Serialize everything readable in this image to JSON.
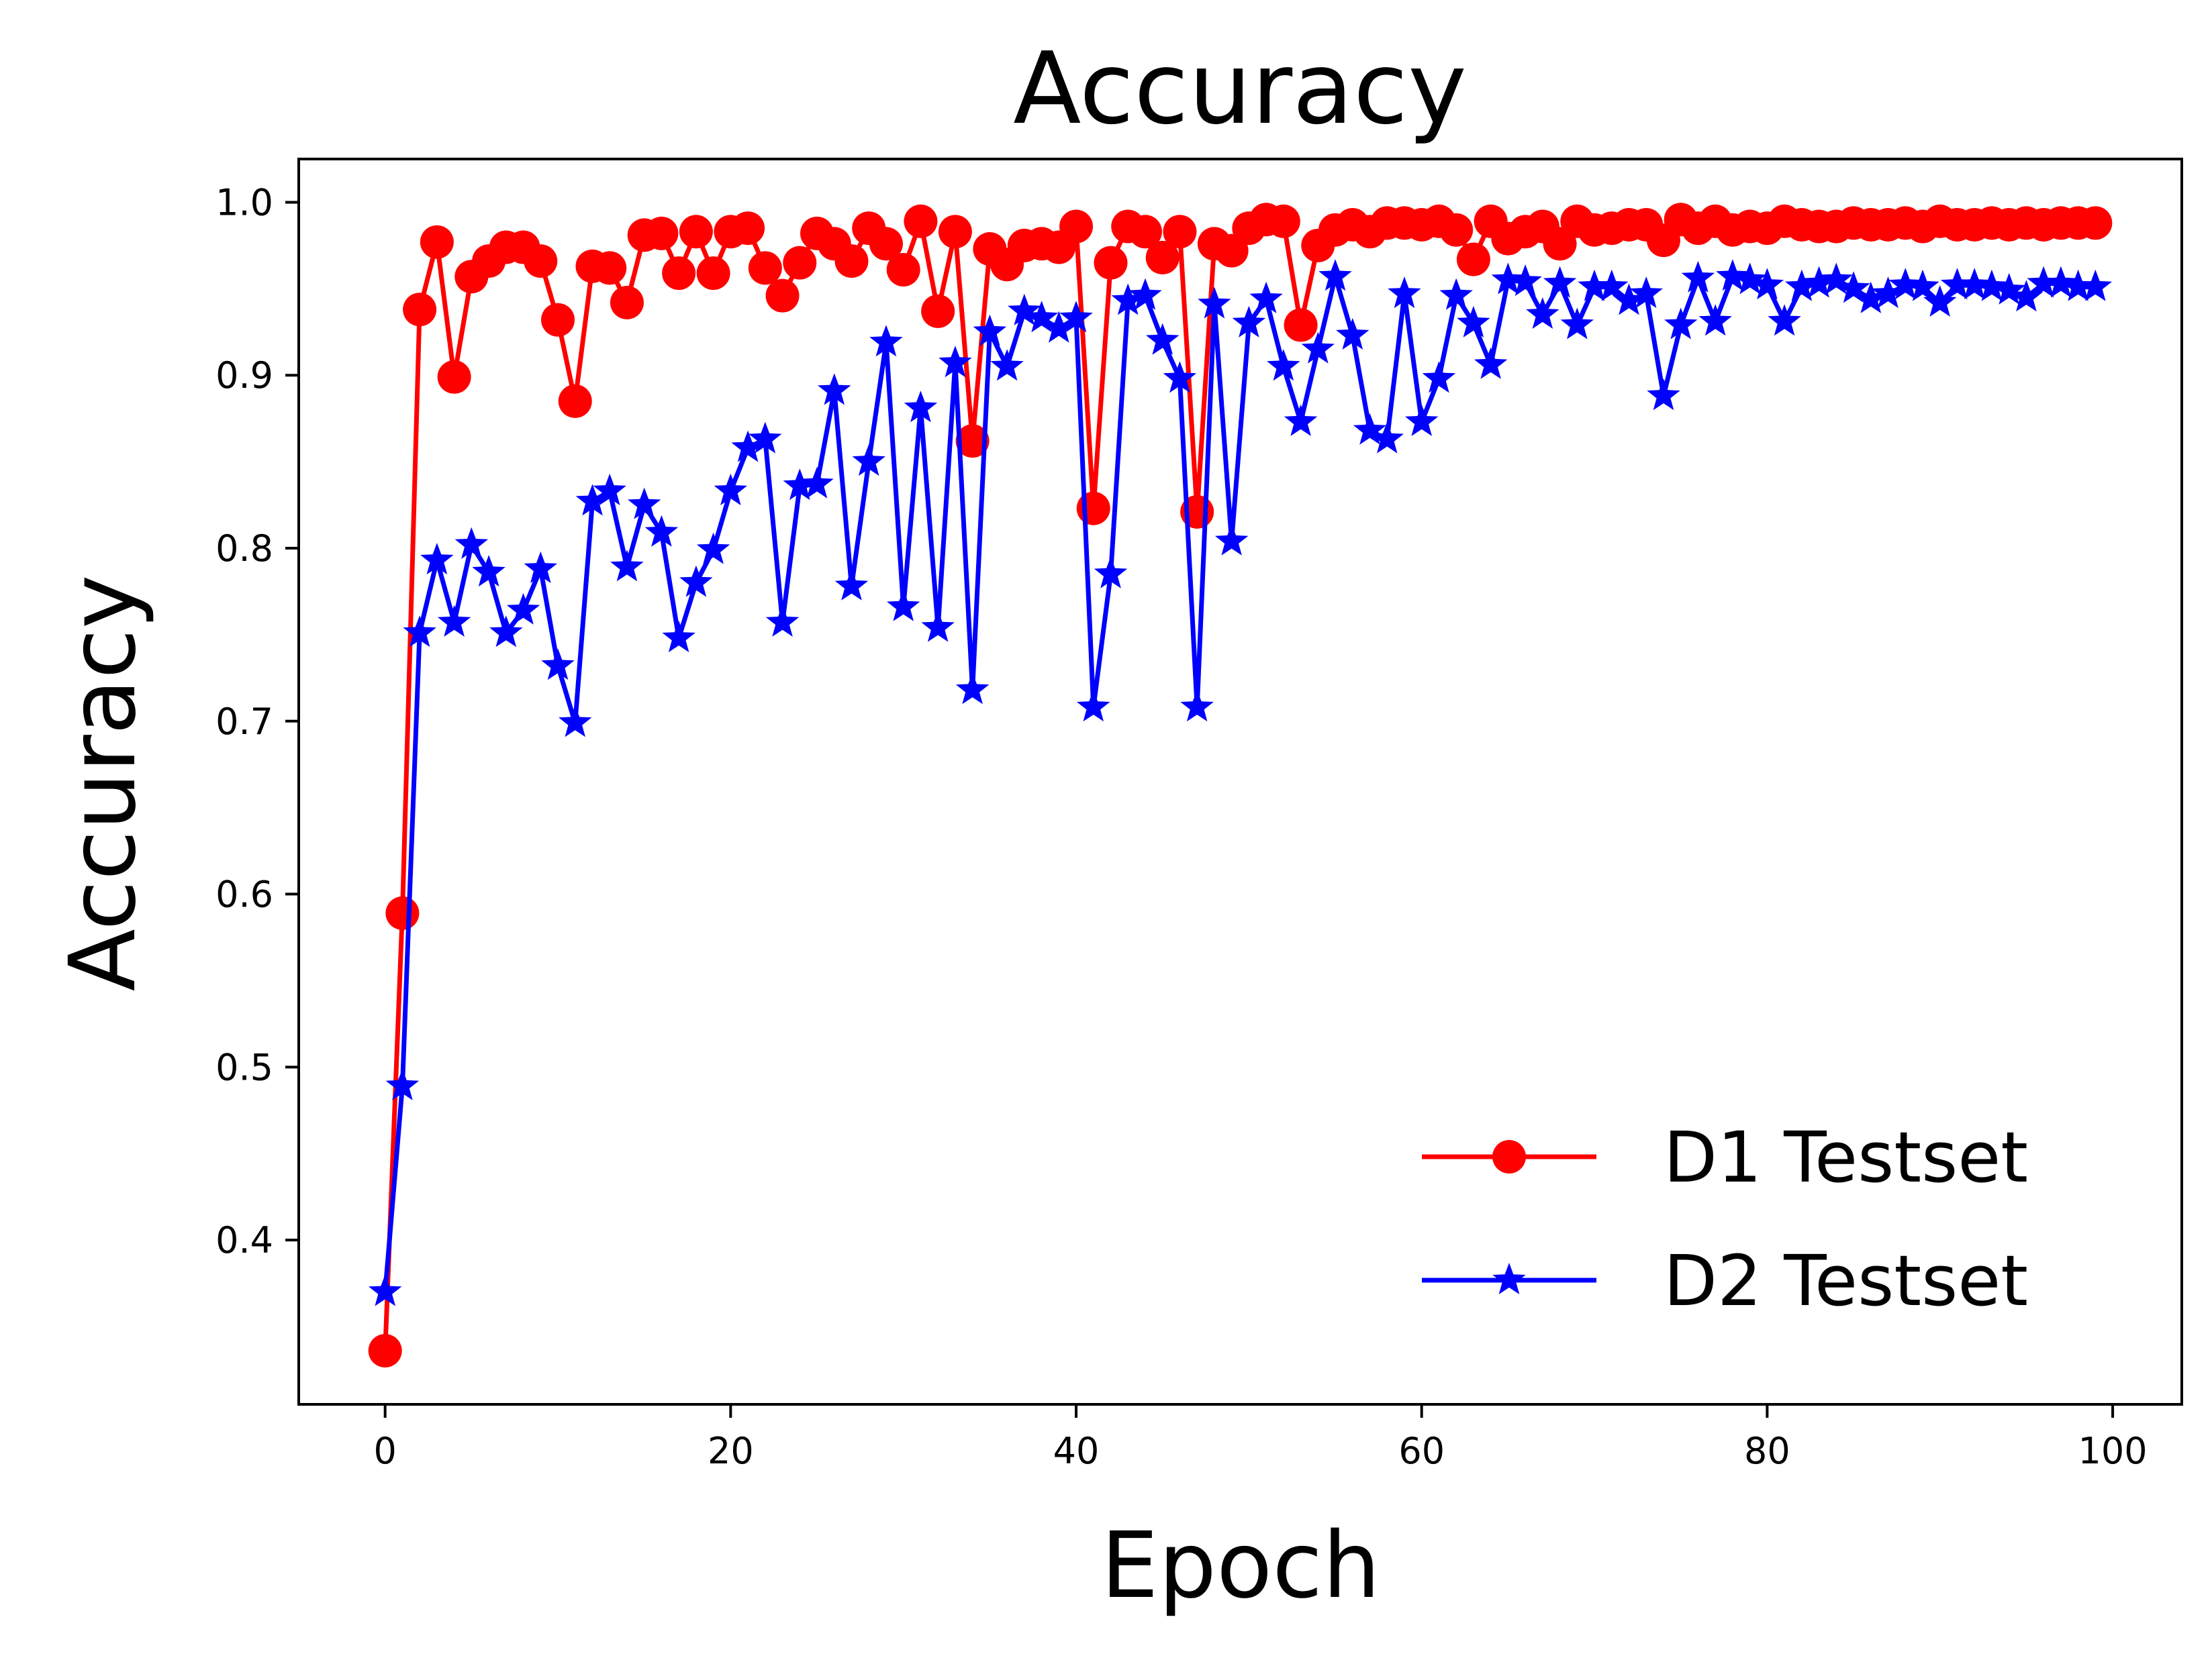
{
  "chart_data": {
    "type": "line",
    "title": "Accuracy",
    "xlabel": "Epoch",
    "ylabel": "Accuracy",
    "xlim": [
      -5,
      104
    ],
    "ylim": [
      0.305,
      1.025
    ],
    "xticks": [
      0,
      20,
      40,
      60,
      80,
      100
    ],
    "xtick_labels": [
      "0",
      "20",
      "40",
      "60",
      "80",
      "100"
    ],
    "yticks": [
      0.4,
      0.5,
      0.6,
      0.7,
      0.8,
      0.9,
      1.0
    ],
    "ytick_labels": [
      "0.4",
      "0.5",
      "0.6",
      "0.7",
      "0.8",
      "0.9",
      "1.0"
    ],
    "grid": false,
    "legend_position": "lower-right",
    "series": [
      {
        "name": "D1 Testset",
        "color": "#ff0000",
        "marker": "circle",
        "x": [
          0,
          1,
          2,
          3,
          4,
          5,
          6,
          7,
          8,
          9,
          10,
          11,
          12,
          13,
          14,
          15,
          16,
          17,
          18,
          19,
          20,
          21,
          22,
          23,
          24,
          25,
          26,
          27,
          28,
          29,
          30,
          31,
          32,
          33,
          34,
          35,
          36,
          37,
          38,
          39,
          40,
          41,
          42,
          43,
          44,
          45,
          46,
          47,
          48,
          49,
          50,
          51,
          52,
          53,
          54,
          55,
          56,
          57,
          58,
          59,
          60,
          61,
          62,
          63,
          64,
          65,
          66,
          67,
          68,
          69,
          70,
          71,
          72,
          73,
          74,
          75,
          76,
          77,
          78,
          79,
          80,
          81,
          82,
          83,
          84,
          85,
          86,
          87,
          88,
          89,
          90,
          91,
          92,
          93,
          94,
          95,
          96,
          97,
          98,
          99
        ],
        "values": [
          0.336,
          0.589,
          0.938,
          0.977,
          0.899,
          0.957,
          0.966,
          0.974,
          0.974,
          0.966,
          0.932,
          0.885,
          0.963,
          0.962,
          0.942,
          0.981,
          0.982,
          0.959,
          0.983,
          0.959,
          0.983,
          0.985,
          0.962,
          0.946,
          0.965,
          0.982,
          0.976,
          0.966,
          0.985,
          0.976,
          0.961,
          0.989,
          0.937,
          0.983,
          0.862,
          0.973,
          0.964,
          0.975,
          0.976,
          0.974,
          0.986,
          0.823,
          0.965,
          0.986,
          0.983,
          0.968,
          0.983,
          0.821,
          0.976,
          0.972,
          0.985,
          0.99,
          0.989,
          0.929,
          0.975,
          0.984,
          0.987,
          0.983,
          0.988,
          0.988,
          0.987,
          0.989,
          0.984,
          0.967,
          0.989,
          0.979,
          0.983,
          0.986,
          0.976,
          0.989,
          0.984,
          0.985,
          0.987,
          0.987,
          0.978,
          0.99,
          0.985,
          0.989,
          0.984,
          0.986,
          0.985,
          0.989,
          0.987,
          0.986,
          0.986,
          0.988,
          0.987,
          0.987,
          0.988,
          0.986,
          0.989,
          0.987,
          0.987,
          0.988,
          0.987,
          0.988,
          0.987,
          0.988,
          0.988,
          0.988
        ]
      },
      {
        "name": "D2 Testset",
        "color": "#0000ff",
        "marker": "star",
        "x": [
          0,
          1,
          2,
          3,
          4,
          5,
          6,
          7,
          8,
          9,
          10,
          11,
          12,
          13,
          14,
          15,
          16,
          17,
          18,
          19,
          20,
          21,
          22,
          23,
          24,
          25,
          26,
          27,
          28,
          29,
          30,
          31,
          32,
          33,
          34,
          35,
          36,
          37,
          38,
          39,
          40,
          41,
          42,
          43,
          44,
          45,
          46,
          47,
          48,
          49,
          50,
          51,
          52,
          53,
          54,
          55,
          56,
          57,
          58,
          59,
          60,
          61,
          62,
          63,
          64,
          65,
          66,
          67,
          68,
          69,
          70,
          71,
          72,
          73,
          74,
          75,
          76,
          77,
          78,
          79,
          80,
          81,
          82,
          83,
          84,
          85,
          86,
          87,
          88,
          89,
          90,
          91,
          92,
          93,
          94,
          95,
          96,
          97,
          98,
          99
        ],
        "values": [
          0.37,
          0.489,
          0.751,
          0.793,
          0.757,
          0.802,
          0.786,
          0.751,
          0.764,
          0.788,
          0.732,
          0.699,
          0.827,
          0.833,
          0.789,
          0.825,
          0.809,
          0.748,
          0.78,
          0.799,
          0.833,
          0.858,
          0.863,
          0.757,
          0.836,
          0.837,
          0.891,
          0.778,
          0.85,
          0.919,
          0.766,
          0.881,
          0.754,
          0.907,
          0.718,
          0.925,
          0.905,
          0.937,
          0.933,
          0.927,
          0.933,
          0.708,
          0.785,
          0.943,
          0.946,
          0.92,
          0.898,
          0.708,
          0.941,
          0.804,
          0.93,
          0.944,
          0.905,
          0.873,
          0.915,
          0.957,
          0.923,
          0.868,
          0.863,
          0.947,
          0.873,
          0.898,
          0.946,
          0.93,
          0.906,
          0.955,
          0.954,
          0.935,
          0.953,
          0.929,
          0.951,
          0.951,
          0.943,
          0.947,
          0.888,
          0.929,
          0.956,
          0.931,
          0.957,
          0.955,
          0.952,
          0.931,
          0.951,
          0.953,
          0.955,
          0.95,
          0.944,
          0.947,
          0.952,
          0.951,
          0.942,
          0.952,
          0.952,
          0.951,
          0.949,
          0.945,
          0.953,
          0.953,
          0.951,
          0.951
        ]
      }
    ]
  }
}
